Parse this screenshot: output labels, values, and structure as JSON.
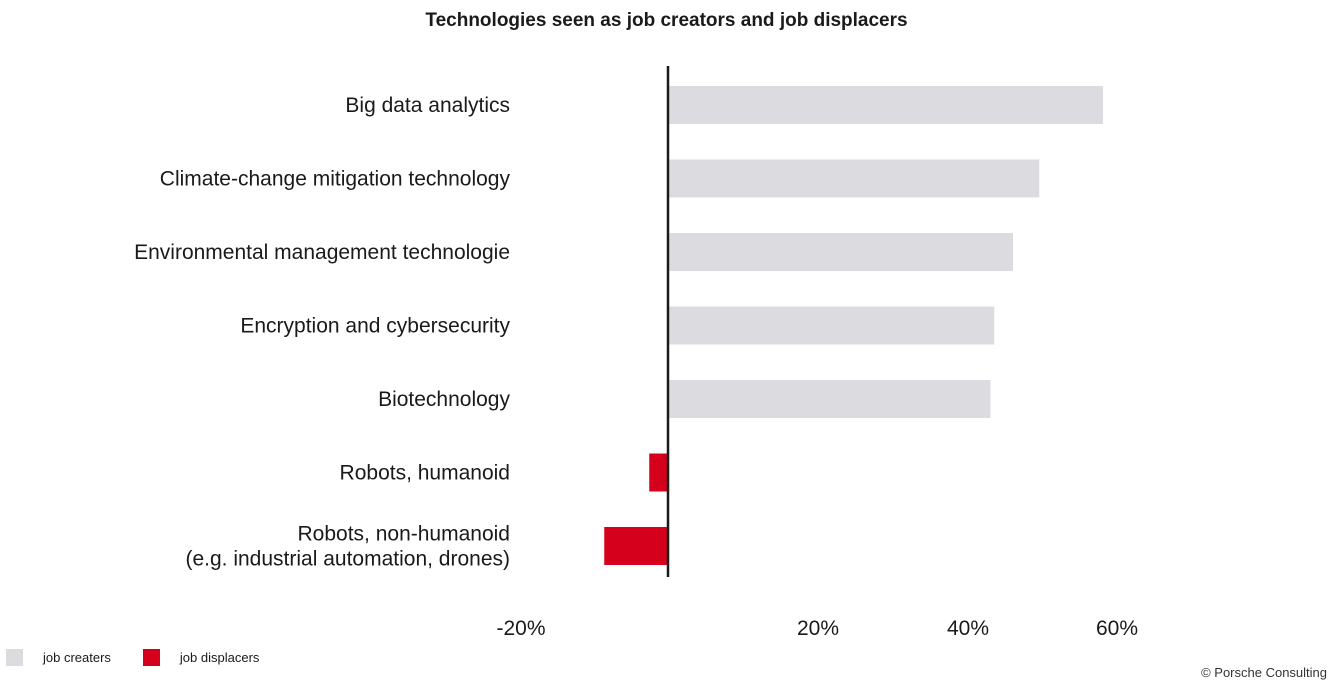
{
  "chart_data": {
    "type": "bar",
    "orientation": "horizontal",
    "title": "Technologies seen as job creators and job displacers",
    "categories": [
      [
        "Big data analytics"
      ],
      [
        "Climate-change mitigation technology"
      ],
      [
        "Environmental management technologie"
      ],
      [
        "Encryption and cybersecurity"
      ],
      [
        "Biotechnology"
      ],
      [
        "Robots, humanoid"
      ],
      [
        "Robots, non-humanoid",
        "(e.g. industrial automation, drones)"
      ]
    ],
    "series": [
      {
        "name": "job creaters",
        "color": "#dcdce0",
        "values": [
          58,
          49.5,
          46,
          43.5,
          43,
          null,
          null
        ]
      },
      {
        "name": "job displacers",
        "color": "#d5001c",
        "values": [
          null,
          null,
          null,
          null,
          null,
          -2.5,
          -8.5
        ]
      }
    ],
    "xticks": [
      {
        "value": -20,
        "label": "-20%"
      },
      {
        "value": 20,
        "label": "20%"
      },
      {
        "value": 40,
        "label": "40%"
      },
      {
        "value": 60,
        "label": "60%"
      }
    ],
    "xlim": [
      -20,
      60
    ],
    "grid": false,
    "legend_position": "bottom-left"
  },
  "footer": {
    "copyright": "© Porsche Consulting"
  }
}
